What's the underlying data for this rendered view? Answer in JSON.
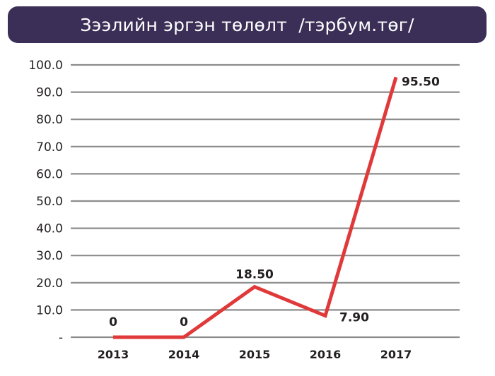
{
  "chart_data": {
    "type": "line",
    "title": "Зээлийн эргэн төлөлт  /тэрбум.төг/",
    "categories": [
      "2013",
      "2014",
      "2015",
      "2016",
      "2017"
    ],
    "values": [
      0,
      0,
      18.5,
      7.9,
      95.5
    ],
    "data_labels": [
      "0",
      "0",
      "18.50",
      "7.90",
      "95.50"
    ],
    "y_ticks": [
      {
        "value": 0,
        "label": "-"
      },
      {
        "value": 10,
        "label": "10.0"
      },
      {
        "value": 20,
        "label": "20.0"
      },
      {
        "value": 30,
        "label": "30.0"
      },
      {
        "value": 40,
        "label": "40.0"
      },
      {
        "value": 50,
        "label": "50.0"
      },
      {
        "value": 60,
        "label": "60.0"
      },
      {
        "value": 70,
        "label": "70.0"
      },
      {
        "value": 80,
        "label": "80.0"
      },
      {
        "value": 90,
        "label": "90.0"
      },
      {
        "value": 100,
        "label": "100.0"
      }
    ],
    "ylim": [
      0,
      100
    ],
    "grid": true,
    "colors": {
      "line": "#e0393a",
      "grid": "#8c8c8c",
      "title_bg": "#3b2f57",
      "text": "#231f20"
    }
  }
}
